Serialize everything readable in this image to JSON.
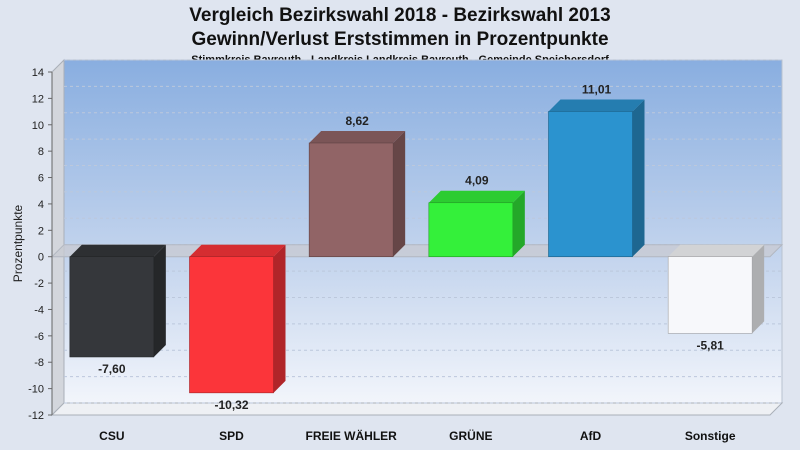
{
  "chart_data": {
    "type": "bar",
    "title": "Vergleich Bezirkswahl 2018 - Bezirkswahl 2013",
    "title2": "Gewinn/Verlust Erststimmen in Prozentpunkte",
    "subtitle": "Stimmkreis Bayreuth - Landkreis Landkreis Bayreuth - Gemeinde Speichersdorf",
    "ylabel": "Prozentpunkte",
    "ylim": [
      -12,
      14
    ],
    "yticks": [
      14,
      12,
      10,
      8,
      6,
      4,
      2,
      0,
      -2,
      -4,
      -6,
      -8,
      -10,
      -12
    ],
    "categories": [
      "CSU",
      "SPD",
      "FREIE WÄHLER",
      "GRÜNE",
      "AfD",
      "Sonstige"
    ],
    "values": [
      -7.6,
      -10.32,
      8.62,
      4.09,
      11.01,
      -5.81
    ],
    "value_labels": [
      "-7,60",
      "-10,32",
      "8,62",
      "4,09",
      "11,01",
      "-5,81"
    ],
    "colors": [
      "#35373b",
      "#fb353a",
      "#916466",
      "#34f03a",
      "#2b93cf",
      "#f7f8fb"
    ],
    "grid": true,
    "legend": "none"
  }
}
